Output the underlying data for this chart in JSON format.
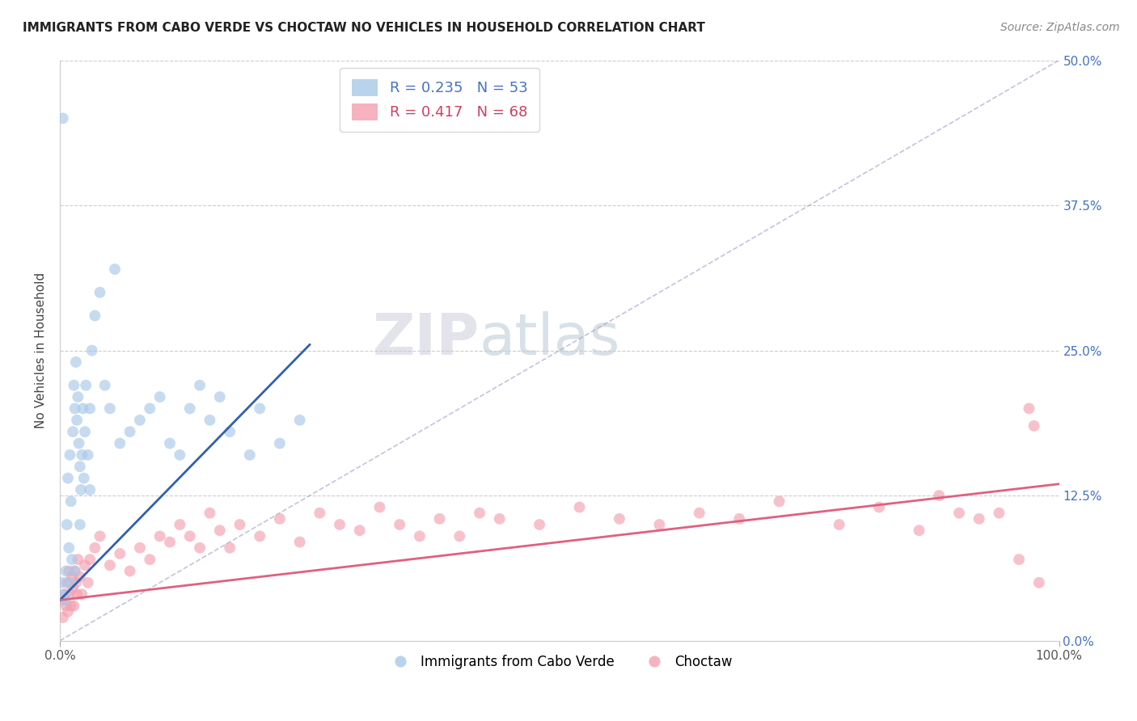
{
  "title": "IMMIGRANTS FROM CABO VERDE VS CHOCTAW NO VEHICLES IN HOUSEHOLD CORRELATION CHART",
  "source": "Source: ZipAtlas.com",
  "ylabel": "No Vehicles in Household",
  "xlim": [
    0,
    100
  ],
  "ylim": [
    0,
    50
  ],
  "ytick_values": [
    0,
    12.5,
    25.0,
    37.5,
    50.0
  ],
  "blue_R": 0.235,
  "blue_N": 53,
  "pink_R": 0.417,
  "pink_N": 68,
  "blue_color": "#a8c8e8",
  "pink_color": "#f4a0b0",
  "blue_line_color": "#3060b0",
  "pink_line_color": "#e06080",
  "legend_label_blue": "Immigrants from Cabo Verde",
  "legend_label_pink": "Choctaw",
  "blue_scatter_x": [
    0.2,
    0.3,
    0.4,
    0.5,
    0.6,
    0.7,
    0.8,
    0.9,
    1.0,
    1.0,
    1.1,
    1.2,
    1.3,
    1.4,
    1.5,
    1.5,
    1.6,
    1.7,
    1.8,
    1.9,
    2.0,
    2.0,
    2.1,
    2.2,
    2.3,
    2.4,
    2.5,
    2.6,
    2.8,
    3.0,
    3.0,
    3.2,
    3.5,
    4.0,
    4.5,
    5.0,
    5.5,
    6.0,
    7.0,
    8.0,
    9.0,
    10.0,
    11.0,
    12.0,
    13.0,
    14.0,
    15.0,
    16.0,
    17.0,
    19.0,
    20.0,
    22.0,
    24.0
  ],
  "blue_scatter_y": [
    5.0,
    45.0,
    4.0,
    3.5,
    6.0,
    10.0,
    14.0,
    8.0,
    16.0,
    5.0,
    12.0,
    7.0,
    18.0,
    22.0,
    20.0,
    6.0,
    24.0,
    19.0,
    21.0,
    17.0,
    15.0,
    10.0,
    13.0,
    16.0,
    20.0,
    14.0,
    18.0,
    22.0,
    16.0,
    13.0,
    20.0,
    25.0,
    28.0,
    30.0,
    22.0,
    20.0,
    32.0,
    17.0,
    18.0,
    19.0,
    20.0,
    21.0,
    17.0,
    16.0,
    20.0,
    22.0,
    19.0,
    21.0,
    18.0,
    16.0,
    20.0,
    17.0,
    19.0
  ],
  "pink_scatter_x": [
    0.2,
    0.3,
    0.5,
    0.6,
    0.7,
    0.8,
    0.9,
    1.0,
    1.1,
    1.2,
    1.3,
    1.4,
    1.5,
    1.6,
    1.7,
    1.8,
    2.0,
    2.2,
    2.5,
    2.8,
    3.0,
    3.5,
    4.0,
    5.0,
    6.0,
    7.0,
    8.0,
    9.0,
    10.0,
    11.0,
    12.0,
    13.0,
    14.0,
    15.0,
    16.0,
    17.0,
    18.0,
    20.0,
    22.0,
    24.0,
    26.0,
    28.0,
    30.0,
    32.0,
    34.0,
    36.0,
    38.0,
    40.0,
    42.0,
    44.0,
    48.0,
    52.0,
    56.0,
    60.0,
    64.0,
    68.0,
    72.0,
    78.0,
    82.0,
    86.0,
    88.0,
    90.0,
    92.0,
    94.0,
    96.0,
    97.0,
    97.5,
    98.0
  ],
  "pink_scatter_y": [
    3.5,
    2.0,
    4.0,
    3.0,
    5.0,
    2.5,
    6.0,
    4.0,
    3.0,
    5.5,
    4.5,
    3.0,
    6.0,
    5.0,
    4.0,
    7.0,
    5.5,
    4.0,
    6.5,
    5.0,
    7.0,
    8.0,
    9.0,
    6.5,
    7.5,
    6.0,
    8.0,
    7.0,
    9.0,
    8.5,
    10.0,
    9.0,
    8.0,
    11.0,
    9.5,
    8.0,
    10.0,
    9.0,
    10.5,
    8.5,
    11.0,
    10.0,
    9.5,
    11.5,
    10.0,
    9.0,
    10.5,
    9.0,
    11.0,
    10.5,
    10.0,
    11.5,
    10.5,
    10.0,
    11.0,
    10.5,
    12.0,
    10.0,
    11.5,
    9.5,
    12.5,
    11.0,
    10.5,
    11.0,
    7.0,
    20.0,
    18.5,
    5.0
  ],
  "blue_line_x0": 0,
  "blue_line_x1": 25,
  "blue_line_y0": 3.5,
  "blue_line_y1": 25.5,
  "pink_line_x0": 0,
  "pink_line_x1": 100,
  "pink_line_y0": 3.5,
  "pink_line_y1": 13.5,
  "diag_line_x0": 0,
  "diag_line_y0": 0,
  "diag_line_x1": 100,
  "diag_line_y1": 50
}
